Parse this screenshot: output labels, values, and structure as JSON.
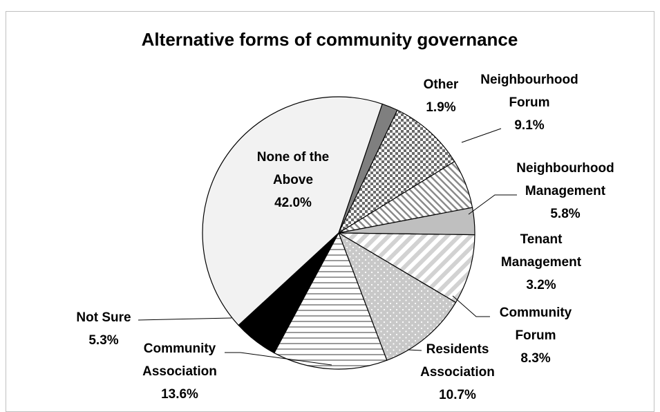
{
  "chart_data": {
    "type": "pie",
    "title": "Alternative forms of community governance",
    "slices": [
      {
        "label": [
          "Other"
        ],
        "value": 1.9,
        "value_text": "1.9%",
        "pattern": "dark-gray"
      },
      {
        "label": [
          "Neighbourhood",
          "Forum"
        ],
        "value": 9.1,
        "value_text": "9.1%",
        "pattern": "checker"
      },
      {
        "label": [
          "Neighbourhood",
          "Management"
        ],
        "value": 5.8,
        "value_text": "5.8%",
        "pattern": "diagonal-light"
      },
      {
        "label": [
          "Tenant",
          "Management"
        ],
        "value": 3.2,
        "value_text": "3.2%",
        "pattern": "light-gray"
      },
      {
        "label": [
          "Community",
          "Forum"
        ],
        "value": 8.3,
        "value_text": "8.3%",
        "pattern": "diagonal-wide"
      },
      {
        "label": [
          "Residents",
          "Association"
        ],
        "value": 10.7,
        "value_text": "10.7%",
        "pattern": "dots"
      },
      {
        "label": [
          "Community",
          "Association"
        ],
        "value": 13.6,
        "value_text": "13.6%",
        "pattern": "horizontal-lines"
      },
      {
        "label": [
          "Not Sure"
        ],
        "value": 5.3,
        "value_text": "5.3%",
        "pattern": "black"
      },
      {
        "label": [
          "None of the",
          "Above"
        ],
        "value": 42.0,
        "value_text": "42.0%",
        "pattern": "very-light-gray"
      }
    ],
    "start_angle_deg": 18.7,
    "direction": "clockwise",
    "legend": "none",
    "slice_stroke_color": "#000000"
  }
}
